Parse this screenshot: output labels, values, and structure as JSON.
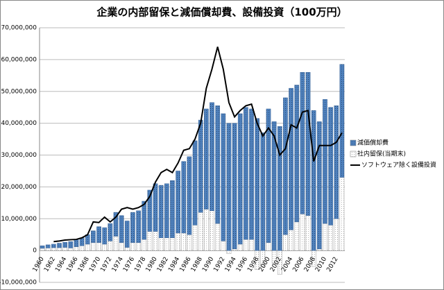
{
  "chart_data": {
    "type": "bar",
    "title": "企業の内部留保と減価償却費、設備投資（100万円）",
    "categories": [
      "1960",
      null,
      "1962",
      null,
      "1964",
      null,
      "1966",
      null,
      "1968",
      null,
      "1970",
      null,
      "1972",
      null,
      "1974",
      null,
      "1976",
      null,
      "1978",
      null,
      "1980",
      null,
      "1982",
      null,
      "1984",
      null,
      "1986",
      null,
      "1988",
      null,
      "1990",
      null,
      "1992",
      null,
      "1994",
      null,
      "1996",
      null,
      "1998",
      null,
      "2000",
      null,
      "2002",
      null,
      "2004",
      null,
      "2006",
      null,
      "2008",
      null,
      "2010",
      null,
      "2012",
      null
    ],
    "series": [
      {
        "name": "減価償却費",
        "color": "#4f81bd",
        "values": [
          800000,
          1000000,
          1100000,
          1400000,
          1600000,
          2000000,
          2200000,
          2500000,
          3000000,
          3700000,
          5000000,
          5200000,
          5500000,
          7500000,
          8500000,
          8300000,
          9500000,
          10000000,
          12000000,
          13000000,
          15000000,
          16500000,
          17000000,
          18000000,
          19500000,
          22500000,
          24500000,
          26500000,
          29000000,
          31500000,
          34000000,
          37000000,
          40000000,
          40000000,
          39500000,
          41000000,
          41500000,
          41000000,
          41500000,
          37000000,
          42000000,
          40500000,
          39000000,
          43000000,
          44500000,
          43000000,
          44500000,
          45000000,
          44000000,
          40000000,
          39000000,
          37000000,
          35500000,
          35500000
        ]
      },
      {
        "name": "社内留保(当期末)",
        "color": "#ffffff",
        "values": [
          700000,
          800000,
          900000,
          900000,
          1000000,
          800000,
          1200000,
          1500000,
          2000000,
          2500000,
          2500000,
          2000000,
          3000000,
          4500000,
          2500000,
          1000000,
          2500000,
          2500000,
          3500000,
          6000000,
          6000000,
          4000000,
          4000000,
          4000000,
          5500000,
          5500000,
          5000000,
          8000000,
          12000000,
          13000000,
          12500000,
          8500000,
          3000000,
          -1000000,
          500000,
          2000000,
          3500000,
          3500000,
          -6000000,
          -5000000,
          2500000,
          -4000000,
          -7500000,
          5000000,
          6500000,
          9000000,
          11500000,
          11000000,
          -5000000,
          500000,
          8500000,
          8000000,
          10000000,
          23000000
        ]
      },
      {
        "name": "ソフトウェア除く設備投資",
        "type": "line",
        "color": "#000000",
        "values": [
          null,
          null,
          2800000,
          3000000,
          3300000,
          3400000,
          3500000,
          4000000,
          5000000,
          9000000,
          8800000,
          10500000,
          9000000,
          10500000,
          13000000,
          13500000,
          13000000,
          13500000,
          14500000,
          17000000,
          21500000,
          24500000,
          25500000,
          24500000,
          27500000,
          31500000,
          32000000,
          35000000,
          40000000,
          51000000,
          57000000,
          64000000,
          57000000,
          46500000,
          42000000,
          44000000,
          45500000,
          46000000,
          40000000,
          36000000,
          38500000,
          36000000,
          30000000,
          32000000,
          39500000,
          38500000,
          43500000,
          44000000,
          28000000,
          33000000,
          33000000,
          33000000,
          34000000,
          37000000
        ]
      }
    ],
    "ylim": [
      -10000000,
      70000000
    ],
    "yticks": [
      {
        "value": -10000000,
        "label": "-10,000,000"
      },
      {
        "value": 0,
        "label": "0"
      },
      {
        "value": 10000000,
        "label": "10,000,000"
      },
      {
        "value": 20000000,
        "label": "20,000,000"
      },
      {
        "value": 30000000,
        "label": "30,000,000"
      },
      {
        "value": 40000000,
        "label": "40,000,000"
      },
      {
        "value": 50000000,
        "label": "50,000,000"
      },
      {
        "value": 60000000,
        "label": "60,000,000"
      },
      {
        "value": 70000000,
        "label": "70,000,000"
      }
    ],
    "grid": true,
    "legend": "right"
  }
}
